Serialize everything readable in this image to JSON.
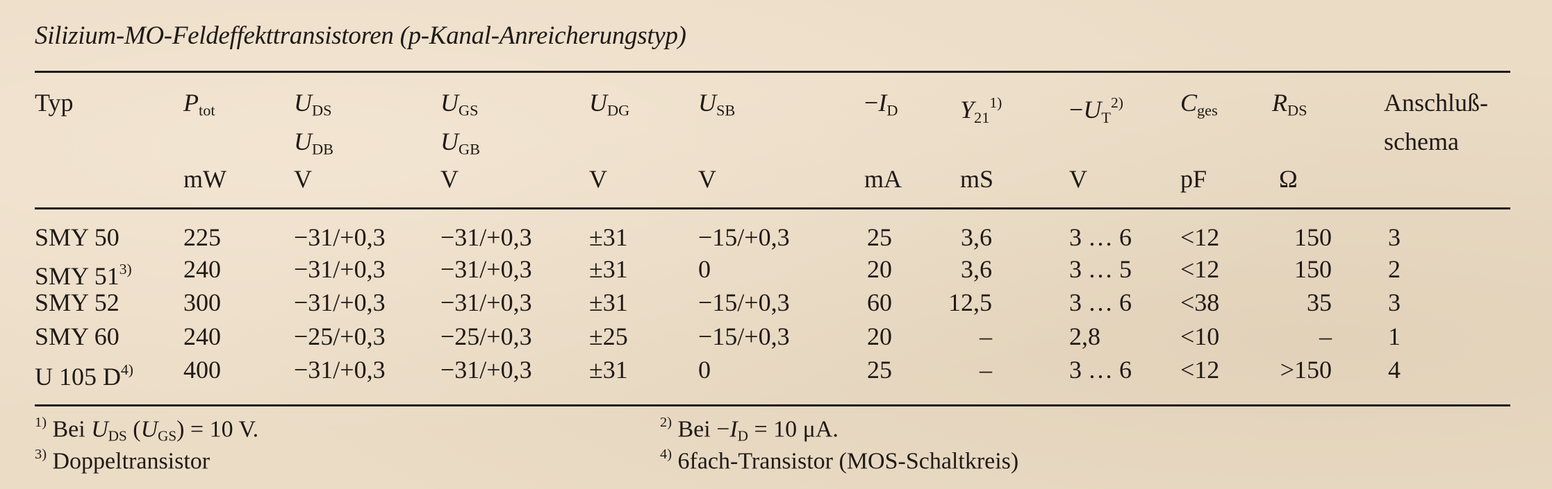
{
  "title": "Silizium-MO-Feldeffekttransistoren (p-Kanal-Anreicherungstyp)",
  "columns": [
    {
      "sym": "Typ",
      "sub": "",
      "sup": "",
      "sym2": "",
      "sub2": "",
      "unit": "",
      "italic": false
    },
    {
      "sym": "P",
      "sub": "tot",
      "sup": "",
      "sym2": "",
      "sub2": "",
      "unit": "mW",
      "italic": true
    },
    {
      "sym": "U",
      "sub": "DS",
      "sup": "",
      "sym2": "U",
      "sub2": "DB",
      "unit": "V",
      "italic": true
    },
    {
      "sym": "U",
      "sub": "GS",
      "sup": "",
      "sym2": "U",
      "sub2": "GB",
      "unit": "V",
      "italic": true
    },
    {
      "sym": "U",
      "sub": "DG",
      "sup": "",
      "sym2": "",
      "sub2": "",
      "unit": "V",
      "italic": true
    },
    {
      "sym": "U",
      "sub": "SB",
      "sup": "",
      "sym2": "",
      "sub2": "",
      "unit": "V",
      "italic": true
    },
    {
      "pre": "−",
      "sym": "I",
      "sub": "D",
      "sup": "",
      "sym2": "",
      "sub2": "",
      "unit": "mA",
      "italic": true
    },
    {
      "sym": "Y",
      "sub": "21",
      "sup": "1)",
      "sym2": "",
      "sub2": "",
      "unit": "mS",
      "italic": true
    },
    {
      "pre": "−",
      "sym": "U",
      "sub": "T",
      "sup": "2)",
      "sym2": "",
      "sub2": "",
      "unit": "V",
      "italic": true
    },
    {
      "sym": "C",
      "sub": "ges",
      "sup": "",
      "sym2": "",
      "sub2": "",
      "unit": "pF",
      "italic": true
    },
    {
      "sym": "R",
      "sub": "DS",
      "sup": "",
      "sym2": "",
      "sub2": "",
      "unit": "Ω",
      "italic": true
    },
    {
      "sym": "Anschluß-",
      "sub": "",
      "sup": "",
      "sym2": "schema",
      "sub2": "",
      "unit": "",
      "italic": false
    }
  ],
  "rows": [
    {
      "typ": "SMY 50",
      "note": "",
      "cells": [
        "225",
        "−31/+0,3",
        "−31/+0,3",
        "±31",
        "−15/+0,3",
        "25",
        "3,6",
        "3 … 6",
        "<12",
        "150",
        "3"
      ]
    },
    {
      "typ": "SMY 51",
      "note": "3)",
      "cells": [
        "240",
        "−31/+0,3",
        "−31/+0,3",
        "±31",
        "0",
        "20",
        "3,6",
        "3 … 5",
        "<12",
        "150",
        "2"
      ]
    },
    {
      "typ": "SMY 52",
      "note": "",
      "cells": [
        "300",
        "−31/+0,3",
        "−31/+0,3",
        "±31",
        "−15/+0,3",
        "60",
        "12,5",
        "3 … 6",
        "<38",
        "35",
        "3"
      ]
    },
    {
      "typ": "SMY 60",
      "note": "",
      "cells": [
        "240",
        "−25/+0,3",
        "−25/+0,3",
        "±25",
        "−15/+0,3",
        "20",
        "–",
        "2,8",
        "<10",
        "–",
        "1"
      ]
    },
    {
      "typ": "U 105 D",
      "note": "4)",
      "cells": [
        "400",
        "−31/+0,3",
        "−31/+0,3",
        "±31",
        "0",
        "25",
        "–",
        "3 … 6",
        "<12",
        ">150",
        "4"
      ]
    }
  ],
  "footnotes": {
    "f1": {
      "mark": "1)",
      "a": "Bei ",
      "s1": "U",
      "s1sub": "DS",
      "b": " (",
      "s2": "U",
      "s2sub": "GS",
      "c": ") = 10 V."
    },
    "f2": {
      "mark": "2)",
      "a": "Bei −",
      "s1": "I",
      "s1sub": "D",
      "c": " = 10 μA."
    },
    "f3": {
      "mark": "3)",
      "text": "Doppeltransistor"
    },
    "f4": {
      "mark": "4)",
      "text": "6fach-Transistor (MOS-Schaltkreis)"
    }
  }
}
